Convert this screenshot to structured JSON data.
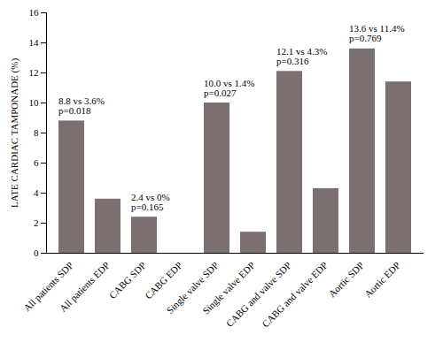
{
  "chart_data": {
    "type": "bar",
    "ylabel": "LATE CARDIAC TAMPONADE (%)",
    "categories": [
      "All patients SDP",
      "All patients EDP",
      "CABG SDP",
      "CABG EDP",
      "Single valve SDP",
      "Single valve EDP",
      "CABG and valve SDP",
      "CABG and valve EDP",
      "Aortic SDP",
      "Aortic EDP"
    ],
    "values": [
      8.8,
      3.6,
      2.4,
      0,
      10.0,
      1.4,
      12.1,
      4.3,
      13.6,
      11.4
    ],
    "color": "#7b6f70",
    "ylim": [
      0,
      16
    ],
    "yticks": [
      0,
      2,
      4,
      6,
      8,
      10,
      12,
      14,
      16
    ],
    "annotations": [
      {
        "category": "All patients SDP",
        "lines": [
          "8.8 vs 3.6%",
          "p=0.018"
        ]
      },
      {
        "category": "CABG SDP",
        "lines": [
          "2.4 vs 0%",
          "p=0.165"
        ]
      },
      {
        "category": "Single valve SDP",
        "lines": [
          "10.0 vs 1.4%",
          "p=0.027"
        ]
      },
      {
        "category": "CABG and valve SDP",
        "lines": [
          "12.1 vs 4.3%",
          "p=0.316"
        ]
      },
      {
        "category": "Aortic SDP",
        "lines": [
          "13.6 vs 11.4%",
          "p=0.769"
        ]
      }
    ]
  }
}
